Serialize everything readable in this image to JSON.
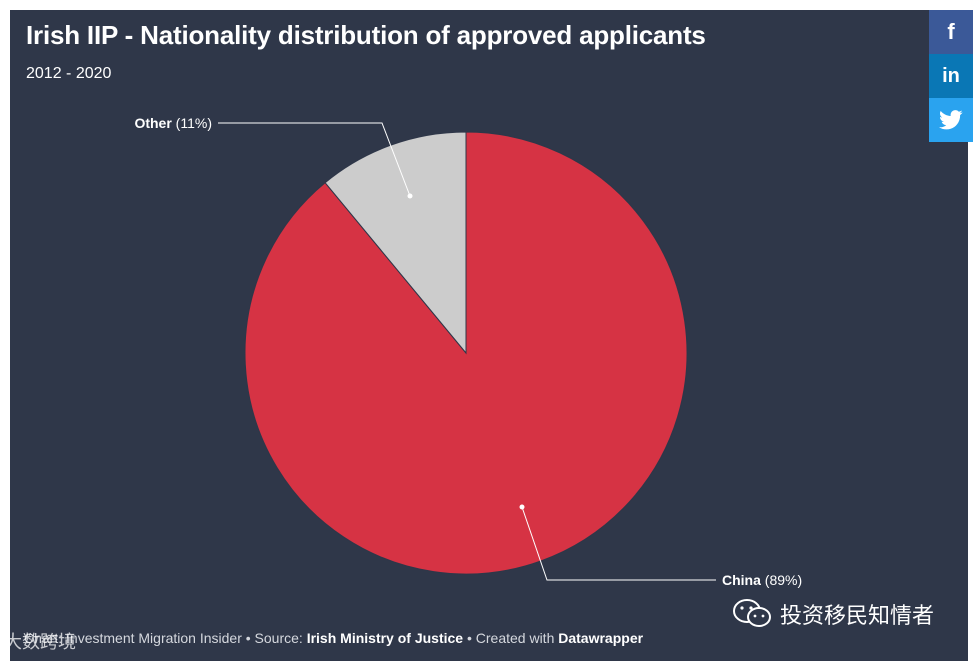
{
  "chart_data": {
    "type": "pie",
    "title": "Irish IIP - Nationality distribution of approved applicants",
    "subtitle": "2012 - 2020",
    "slices": [
      {
        "name": "China",
        "value": 89,
        "label_pct": "(89%)",
        "color": "#d63344"
      },
      {
        "name": "Other",
        "value": 11,
        "label_pct": "(11%)",
        "color": "#cccccc"
      }
    ]
  },
  "footer": {
    "chart_prefix": "Chart: ",
    "chart_by": "Investment Migration Insider",
    "source_prefix": " • Source: ",
    "source": "Irish Ministry of Justice",
    "created_prefix": " • Created with ",
    "created_with": "Datawrapper"
  },
  "share": {
    "facebook_icon": "f",
    "linkedin_icon": "in",
    "twitter_icon": "twitter-bird"
  },
  "watermarks": {
    "wechat_text": "投资移民知情者",
    "left_text": "大数跨境"
  },
  "colors": {
    "background": "#2f3749",
    "china": "#d63344",
    "other": "#cccccc",
    "facebook": "#3b5998",
    "linkedin": "#0a77b5",
    "twitter": "#2aa3ef"
  }
}
